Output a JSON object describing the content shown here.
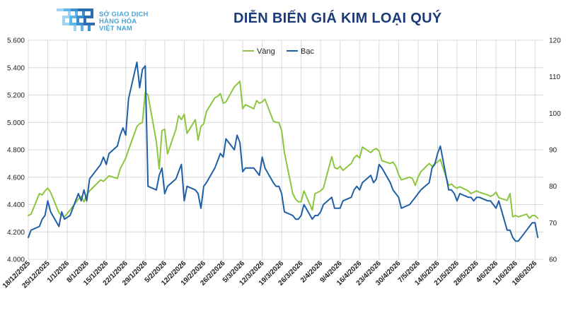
{
  "header": {
    "logo_lines": [
      "SỞ GIAO DỊCH",
      "HÀNG HÓA",
      "VIỆT NAM"
    ],
    "title": "DIỄN BIẾN GIÁ KIM LOẠI QUÝ"
  },
  "colors": {
    "gold": "#8cc63f",
    "silver": "#1f5fa6",
    "logo": "#4aa3d8",
    "title": "#1c3c78",
    "grid": "#d9d9d9"
  },
  "chart_data": {
    "type": "line",
    "grid": true,
    "legend_position": "top-center",
    "y_left": {
      "min": 4000,
      "max": 5600,
      "step": 200,
      "tick_labels": [
        "4.000",
        "4.200",
        "4.400",
        "4.600",
        "4.800",
        "5.000",
        "5.200",
        "5.400",
        "5.600"
      ]
    },
    "y_right": {
      "min": 60,
      "max": 120,
      "step": 10,
      "tick_labels": [
        "60",
        "70",
        "80",
        "90",
        "100",
        "110",
        "120"
      ]
    },
    "x_range": [
      "2025-12-18",
      "2026-06-21"
    ],
    "x_tick_labels": [
      "18/12/2025",
      "25/12/2025",
      "1/1/2026",
      "8/1/2026",
      "15/1/2026",
      "22/1/2026",
      "29/1/2026",
      "5/2/2026",
      "12/2/2026",
      "19/2/2026",
      "26/2/2026",
      "5/3/2026",
      "12/3/2026",
      "19/3/2026",
      "26/3/2026",
      "2/4/2026",
      "9/4/2026",
      "16/4/2026",
      "23/4/2026",
      "30/4/2026",
      "7/5/2026",
      "14/5/2026",
      "21/5/2026",
      "28/5/2026",
      "4/6/2026",
      "11/6/2026",
      "18/6/2026"
    ],
    "x_tick_dates": [
      "2025-12-18",
      "2025-12-25",
      "2026-01-01",
      "2026-01-08",
      "2026-01-15",
      "2026-01-22",
      "2026-01-29",
      "2026-02-05",
      "2026-02-12",
      "2026-02-19",
      "2026-02-26",
      "2026-03-05",
      "2026-03-12",
      "2026-03-19",
      "2026-03-26",
      "2026-04-02",
      "2026-04-09",
      "2026-04-16",
      "2026-04-23",
      "2026-04-30",
      "2026-05-07",
      "2026-05-14",
      "2026-05-21",
      "2026-05-28",
      "2026-06-04",
      "2026-06-11",
      "2026-06-18"
    ],
    "series": [
      {
        "name": "Vàng",
        "axis": "left",
        "color": "#8cc63f",
        "x": [
          "2025-12-18",
          "2025-12-19",
          "2025-12-22",
          "2025-12-23",
          "2025-12-24",
          "2025-12-25",
          "2025-12-26",
          "2025-12-29",
          "2025-12-30",
          "2025-12-31",
          "2026-01-02",
          "2026-01-05",
          "2026-01-06",
          "2026-01-07",
          "2026-01-08",
          "2026-01-09",
          "2026-01-12",
          "2026-01-13",
          "2026-01-14",
          "2026-01-15",
          "2026-01-16",
          "2026-01-19",
          "2026-01-20",
          "2026-01-21",
          "2026-01-22",
          "2026-01-23",
          "2026-01-26",
          "2026-01-27",
          "2026-01-28",
          "2026-01-29",
          "2026-01-30",
          "2026-02-02",
          "2026-02-03",
          "2026-02-04",
          "2026-02-05",
          "2026-02-06",
          "2026-02-09",
          "2026-02-10",
          "2026-02-11",
          "2026-02-12",
          "2026-02-13",
          "2026-02-16",
          "2026-02-17",
          "2026-02-18",
          "2026-02-19",
          "2026-02-20",
          "2026-02-23",
          "2026-02-24",
          "2026-02-25",
          "2026-02-26",
          "2026-02-27",
          "2026-03-02",
          "2026-03-03",
          "2026-03-04",
          "2026-03-05",
          "2026-03-06",
          "2026-03-09",
          "2026-03-10",
          "2026-03-11",
          "2026-03-12",
          "2026-03-13",
          "2026-03-16",
          "2026-03-17",
          "2026-03-18",
          "2026-03-19",
          "2026-03-20",
          "2026-03-23",
          "2026-03-24",
          "2026-03-25",
          "2026-03-26",
          "2026-03-27",
          "2026-03-30",
          "2026-03-31",
          "2026-04-01",
          "2026-04-02",
          "2026-04-03",
          "2026-04-06",
          "2026-04-07",
          "2026-04-08",
          "2026-04-09",
          "2026-04-10",
          "2026-04-13",
          "2026-04-14",
          "2026-04-15",
          "2026-04-16",
          "2026-04-17",
          "2026-04-20",
          "2026-04-21",
          "2026-04-22",
          "2026-04-23",
          "2026-04-24",
          "2026-04-27",
          "2026-04-28",
          "2026-04-29",
          "2026-04-30",
          "2026-05-01",
          "2026-05-04",
          "2026-05-05",
          "2026-05-06",
          "2026-05-07",
          "2026-05-08",
          "2026-05-11",
          "2026-05-12",
          "2026-05-13",
          "2026-05-14",
          "2026-05-15",
          "2026-05-18",
          "2026-05-19",
          "2026-05-20",
          "2026-05-21",
          "2026-05-22",
          "2026-05-25",
          "2026-05-26",
          "2026-05-27",
          "2026-05-28",
          "2026-05-29",
          "2026-06-01",
          "2026-06-02",
          "2026-06-03",
          "2026-06-04",
          "2026-06-05",
          "2026-06-08",
          "2026-06-09",
          "2026-06-10",
          "2026-06-11",
          "2026-06-12",
          "2026-06-15",
          "2026-06-16",
          "2026-06-17",
          "2026-06-18",
          "2026-06-19"
        ],
        "values": [
          4320,
          4330,
          4480,
          4470,
          4500,
          4520,
          4490,
          4340,
          4320,
          4310,
          4360,
          4440,
          4460,
          4420,
          4470,
          4500,
          4560,
          4580,
          4570,
          4590,
          4610,
          4590,
          4660,
          4700,
          4740,
          4800,
          4970,
          4990,
          5000,
          5220,
          5200,
          4860,
          4660,
          4940,
          4950,
          4770,
          4950,
          5050,
          5020,
          5060,
          4920,
          5020,
          4870,
          4970,
          4990,
          5080,
          5180,
          5190,
          5210,
          5140,
          5150,
          5260,
          5280,
          5300,
          5100,
          5130,
          5100,
          5160,
          5140,
          5150,
          5170,
          5010,
          5000,
          5000,
          4940,
          4780,
          4480,
          4440,
          4420,
          4420,
          4500,
          4360,
          4480,
          4490,
          4500,
          4520,
          4750,
          4670,
          4660,
          4680,
          4650,
          4700,
          4740,
          4760,
          4740,
          4820,
          4780,
          4800,
          4810,
          4790,
          4720,
          4700,
          4710,
          4680,
          4620,
          4580,
          4600,
          4590,
          4540,
          4600,
          4640,
          4700,
          4680,
          4700,
          4710,
          4730,
          4540,
          4550,
          4530,
          4520,
          4530,
          4500,
          4480,
          4490,
          4500,
          4490,
          4470,
          4460,
          4470,
          4490,
          4450,
          4430,
          4480,
          4310,
          4320,
          4310,
          4330,
          4300,
          4320,
          4320,
          4300
        ]
      },
      {
        "name": "Bạc",
        "axis": "right",
        "color": "#1f5fa6",
        "x": [
          "2025-12-18",
          "2025-12-19",
          "2025-12-22",
          "2025-12-23",
          "2025-12-24",
          "2025-12-25",
          "2025-12-26",
          "2025-12-29",
          "2025-12-30",
          "2025-12-31",
          "2026-01-02",
          "2026-01-05",
          "2026-01-06",
          "2026-01-07",
          "2026-01-08",
          "2026-01-09",
          "2026-01-12",
          "2026-01-13",
          "2026-01-14",
          "2026-01-15",
          "2026-01-16",
          "2026-01-19",
          "2026-01-20",
          "2026-01-21",
          "2026-01-22",
          "2026-01-23",
          "2026-01-26",
          "2026-01-27",
          "2026-01-28",
          "2026-01-29",
          "2026-01-30",
          "2026-02-02",
          "2026-02-03",
          "2026-02-04",
          "2026-02-05",
          "2026-02-06",
          "2026-02-09",
          "2026-02-10",
          "2026-02-11",
          "2026-02-12",
          "2026-02-13",
          "2026-02-16",
          "2026-02-17",
          "2026-02-18",
          "2026-02-19",
          "2026-02-20",
          "2026-02-23",
          "2026-02-24",
          "2026-02-25",
          "2026-02-26",
          "2026-02-27",
          "2026-03-02",
          "2026-03-03",
          "2026-03-04",
          "2026-03-05",
          "2026-03-06",
          "2026-03-09",
          "2026-03-10",
          "2026-03-11",
          "2026-03-12",
          "2026-03-13",
          "2026-03-16",
          "2026-03-17",
          "2026-03-18",
          "2026-03-19",
          "2026-03-20",
          "2026-03-23",
          "2026-03-24",
          "2026-03-25",
          "2026-03-26",
          "2026-03-27",
          "2026-03-30",
          "2026-03-31",
          "2026-04-01",
          "2026-04-02",
          "2026-04-03",
          "2026-04-06",
          "2026-04-07",
          "2026-04-08",
          "2026-04-09",
          "2026-04-10",
          "2026-04-13",
          "2026-04-14",
          "2026-04-15",
          "2026-04-16",
          "2026-04-17",
          "2026-04-20",
          "2026-04-21",
          "2026-04-22",
          "2026-04-23",
          "2026-04-24",
          "2026-04-27",
          "2026-04-28",
          "2026-04-29",
          "2026-04-30",
          "2026-05-01",
          "2026-05-04",
          "2026-05-05",
          "2026-05-06",
          "2026-05-07",
          "2026-05-08",
          "2026-05-11",
          "2026-05-12",
          "2026-05-13",
          "2026-05-14",
          "2026-05-15",
          "2026-05-18",
          "2026-05-19",
          "2026-05-20",
          "2026-05-21",
          "2026-05-22",
          "2026-05-25",
          "2026-05-26",
          "2026-05-27",
          "2026-05-28",
          "2026-05-29",
          "2026-06-01",
          "2026-06-02",
          "2026-06-03",
          "2026-06-04",
          "2026-06-05",
          "2026-06-08",
          "2026-06-09",
          "2026-06-10",
          "2026-06-11",
          "2026-06-12",
          "2026-06-15",
          "2026-06-16",
          "2026-06-17",
          "2026-06-18",
          "2026-06-19"
        ],
        "values": [
          66,
          68,
          69,
          71,
          72,
          76,
          73,
          69,
          73,
          71,
          72,
          78,
          76,
          79,
          76,
          82,
          85,
          86,
          88,
          86,
          89,
          91,
          94,
          96,
          94,
          104,
          114,
          107,
          112,
          113,
          80,
          79,
          83,
          85,
          78,
          80,
          82,
          84,
          86,
          76,
          80,
          79,
          78,
          74,
          80,
          81,
          85,
          87,
          89,
          88,
          93,
          90,
          94,
          92,
          84,
          85,
          85,
          84,
          83,
          88,
          85,
          81,
          80,
          80,
          78,
          73,
          72,
          71,
          71,
          72,
          75,
          71,
          72,
          72,
          73,
          75,
          77,
          74,
          74,
          74,
          76,
          77,
          79,
          80,
          79,
          81,
          83,
          81,
          82,
          86,
          85,
          81,
          79,
          78,
          77,
          74,
          75,
          76,
          77,
          78,
          79,
          81,
          85,
          86,
          89,
          91,
          79,
          79,
          78,
          76,
          78,
          77,
          77,
          76,
          77,
          77,
          76,
          76,
          75,
          74,
          76,
          68,
          68,
          66,
          65,
          65,
          68,
          69,
          70,
          70,
          66
        ]
      }
    ]
  }
}
